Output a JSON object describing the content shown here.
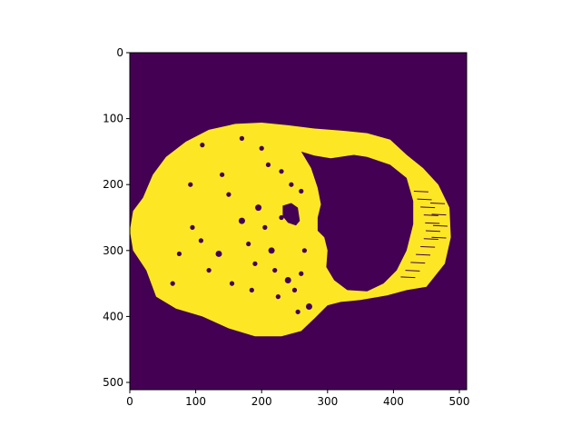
{
  "chart_data": {
    "type": "heatmap",
    "subtype": "binary image (imshow)",
    "colormap": "viridis",
    "colors": {
      "background_value_0": "#440154",
      "foreground_value_1": "#fde725",
      "axis": "#000000"
    },
    "image_size": [
      512,
      512
    ],
    "xlim": [
      0,
      511
    ],
    "ylim": [
      511,
      0
    ],
    "y_axis_inverted": true,
    "x_ticks": [
      {
        "value": 0,
        "label": "0"
      },
      {
        "value": 100,
        "label": "100"
      },
      {
        "value": 200,
        "label": "200"
      },
      {
        "value": 300,
        "label": "300"
      },
      {
        "value": 400,
        "label": "400"
      },
      {
        "value": 500,
        "label": "500"
      }
    ],
    "y_ticks": [
      {
        "value": 0,
        "label": "0"
      },
      {
        "value": 100,
        "label": "100"
      },
      {
        "value": 200,
        "label": "200"
      },
      {
        "value": 300,
        "label": "300"
      },
      {
        "value": 400,
        "label": "400"
      },
      {
        "value": 500,
        "label": "500"
      }
    ],
    "foreground_outline": [
      [
        0,
        270
      ],
      [
        5,
        240
      ],
      [
        20,
        220
      ],
      [
        35,
        185
      ],
      [
        55,
        158
      ],
      [
        85,
        135
      ],
      [
        120,
        117
      ],
      [
        160,
        108
      ],
      [
        200,
        106
      ],
      [
        240,
        110
      ],
      [
        280,
        115
      ],
      [
        320,
        118
      ],
      [
        360,
        122
      ],
      [
        395,
        132
      ],
      [
        420,
        155
      ],
      [
        445,
        175
      ],
      [
        468,
        200
      ],
      [
        485,
        235
      ],
      [
        487,
        280
      ],
      [
        478,
        320
      ],
      [
        450,
        355
      ],
      [
        420,
        360
      ],
      [
        390,
        368
      ],
      [
        350,
        375
      ],
      [
        320,
        378
      ],
      [
        300,
        383
      ],
      [
        280,
        403
      ],
      [
        260,
        422
      ],
      [
        230,
        430
      ],
      [
        190,
        430
      ],
      [
        150,
        418
      ],
      [
        110,
        400
      ],
      [
        70,
        388
      ],
      [
        40,
        370
      ],
      [
        25,
        330
      ],
      [
        5,
        300
      ]
    ],
    "holes": [
      [
        [
          260,
          150
        ],
        [
          280,
          156
        ],
        [
          305,
          160
        ],
        [
          340,
          155
        ],
        [
          360,
          158
        ],
        [
          395,
          170
        ],
        [
          420,
          190
        ],
        [
          430,
          225
        ],
        [
          430,
          260
        ],
        [
          420,
          300
        ],
        [
          405,
          330
        ],
        [
          385,
          350
        ],
        [
          360,
          362
        ],
        [
          330,
          360
        ],
        [
          310,
          345
        ],
        [
          298,
          325
        ],
        [
          300,
          300
        ],
        [
          295,
          280
        ],
        [
          285,
          270
        ],
        [
          285,
          250
        ],
        [
          290,
          230
        ],
        [
          285,
          205
        ],
        [
          275,
          175
        ]
      ],
      [
        [
          232,
          232
        ],
        [
          245,
          228
        ],
        [
          255,
          235
        ],
        [
          258,
          255
        ],
        [
          252,
          262
        ],
        [
          240,
          258
        ],
        [
          232,
          248
        ]
      ]
    ],
    "specks": [
      [
        92,
        200,
        3
      ],
      [
        95,
        265,
        3
      ],
      [
        108,
        285,
        3
      ],
      [
        135,
        305,
        4
      ],
      [
        150,
        215,
        3
      ],
      [
        170,
        255,
        4
      ],
      [
        180,
        290,
        3
      ],
      [
        195,
        235,
        4
      ],
      [
        205,
        265,
        3
      ],
      [
        215,
        300,
        4
      ],
      [
        220,
        330,
        3
      ],
      [
        240,
        345,
        4
      ],
      [
        250,
        360,
        3
      ],
      [
        225,
        370,
        3
      ],
      [
        265,
        300,
        3
      ],
      [
        260,
        335,
        3
      ],
      [
        272,
        385,
        4
      ],
      [
        210,
        170,
        3
      ],
      [
        230,
        180,
        3
      ],
      [
        245,
        200,
        3
      ],
      [
        260,
        210,
        3
      ],
      [
        155,
        350,
        3
      ],
      [
        185,
        360,
        3
      ],
      [
        65,
        350,
        3
      ],
      [
        110,
        140,
        3
      ],
      [
        170,
        130,
        3
      ],
      [
        200,
        145,
        3
      ],
      [
        300,
        398,
        3
      ],
      [
        255,
        393,
        3
      ],
      [
        230,
        250,
        3
      ],
      [
        190,
        320,
        3
      ],
      [
        120,
        330,
        3
      ],
      [
        75,
        305,
        3
      ],
      [
        140,
        185,
        3
      ]
    ],
    "dark_streaks_right": [
      [
        445,
        210
      ],
      [
        450,
        222
      ],
      [
        455,
        234
      ],
      [
        460,
        246
      ],
      [
        462,
        258
      ],
      [
        463,
        270
      ],
      [
        460,
        282
      ],
      [
        455,
        294
      ],
      [
        448,
        306
      ],
      [
        440,
        318
      ],
      [
        432,
        330
      ],
      [
        425,
        340
      ],
      [
        470,
        228
      ],
      [
        472,
        245
      ],
      [
        474,
        262
      ],
      [
        472,
        280
      ]
    ]
  }
}
